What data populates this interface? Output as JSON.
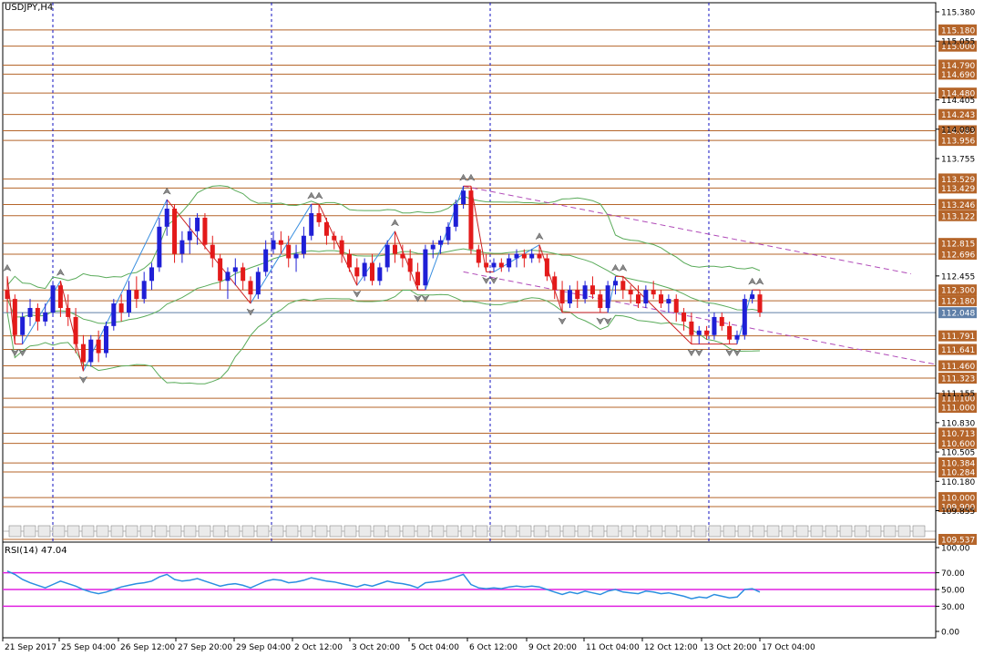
{
  "symbol_title": "USDJPY,H4",
  "rsi_title": "RSI(14) 47.04",
  "colors": {
    "bull": "#1f1fd6",
    "bear": "#e31a1a",
    "level_line": "#b5652a",
    "bollinger": "#5aab5a",
    "zigzag_up": "#3a8fe0",
    "zigzag_down": "#cc2222",
    "channel": "#b04ab8",
    "rsi_line": "#2b8fe0",
    "rsi_level": "#e020e0",
    "current_price": "#5f7fa8",
    "period_sep": "#1010c0"
  },
  "chart_data": {
    "type": "candlestick",
    "timeframe": "H4",
    "y_range": [
      109.537,
      115.38
    ],
    "price_axis_ticks": [
      "115.380",
      "115.055",
      "114.405",
      "114.080",
      "113.755",
      "112.455",
      "111.155",
      "110.830",
      "110.505",
      "110.180",
      "109.855"
    ],
    "time_axis_labels": [
      "21 Sep 2017",
      "25 Sep 04:00",
      "26 Sep 12:00",
      "27 Sep 20:00",
      "29 Sep 04:00",
      "2 Oct 12:00",
      "3 Oct 20:00",
      "5 Oct 04:00",
      "6 Oct 12:00",
      "9 Oct 20:00",
      "11 Oct 04:00",
      "12 Oct 12:00",
      "13 Oct 20:00",
      "17 Oct 04:00"
    ],
    "levels": [
      "115.180",
      "115.000",
      "114.790",
      "114.690",
      "114.480",
      "114.243",
      "114.063",
      "113.956",
      "113.529",
      "113.429",
      "113.246",
      "113.122",
      "112.815",
      "112.696",
      "112.300",
      "112.180",
      "111.791",
      "111.641",
      "111.460",
      "111.323",
      "111.100",
      "111.000",
      "110.713",
      "110.600",
      "110.384",
      "110.284",
      "110.000",
      "109.900",
      "109.537"
    ],
    "current_price": "112.048",
    "candles": [
      [
        112.3,
        112.45,
        112.05,
        112.2
      ],
      [
        112.2,
        112.25,
        111.7,
        111.8
      ],
      [
        111.8,
        112.05,
        111.7,
        112.0
      ],
      [
        112.0,
        112.2,
        111.9,
        112.1
      ],
      [
        112.1,
        112.15,
        111.85,
        111.95
      ],
      [
        111.95,
        112.15,
        111.9,
        112.05
      ],
      [
        112.05,
        112.4,
        112.0,
        112.35
      ],
      [
        112.35,
        112.4,
        112.0,
        112.1
      ],
      [
        112.1,
        112.25,
        111.9,
        112.0
      ],
      [
        112.0,
        112.1,
        111.6,
        111.7
      ],
      [
        111.7,
        111.8,
        111.4,
        111.5
      ],
      [
        111.5,
        111.8,
        111.45,
        111.75
      ],
      [
        111.75,
        111.85,
        111.5,
        111.6
      ],
      [
        111.6,
        111.95,
        111.55,
        111.9
      ],
      [
        111.9,
        112.2,
        111.85,
        112.15
      ],
      [
        112.15,
        112.25,
        111.95,
        112.05
      ],
      [
        112.05,
        112.4,
        112.0,
        112.3
      ],
      [
        112.3,
        112.45,
        112.1,
        112.2
      ],
      [
        112.2,
        112.5,
        112.15,
        112.4
      ],
      [
        112.4,
        112.6,
        112.3,
        112.55
      ],
      [
        112.55,
        113.1,
        112.5,
        113.0
      ],
      [
        113.0,
        113.3,
        112.9,
        113.2
      ],
      [
        113.2,
        113.25,
        112.6,
        112.7
      ],
      [
        112.7,
        112.95,
        112.6,
        112.85
      ],
      [
        112.85,
        113.1,
        112.7,
        112.95
      ],
      [
        112.95,
        113.15,
        112.8,
        113.1
      ],
      [
        113.1,
        113.15,
        112.75,
        112.8
      ],
      [
        112.8,
        112.9,
        112.55,
        112.65
      ],
      [
        112.65,
        112.7,
        112.3,
        112.4
      ],
      [
        112.4,
        112.55,
        112.2,
        112.5
      ],
      [
        112.5,
        112.65,
        112.35,
        112.55
      ],
      [
        112.55,
        112.6,
        112.3,
        112.4
      ],
      [
        112.4,
        112.45,
        112.15,
        112.25
      ],
      [
        112.25,
        112.55,
        112.2,
        112.5
      ],
      [
        112.5,
        112.85,
        112.45,
        112.75
      ],
      [
        112.75,
        112.95,
        112.7,
        112.85
      ],
      [
        112.85,
        112.95,
        112.7,
        112.8
      ],
      [
        112.8,
        112.9,
        112.55,
        112.65
      ],
      [
        112.65,
        112.8,
        112.5,
        112.7
      ],
      [
        112.7,
        113.0,
        112.65,
        112.9
      ],
      [
        112.9,
        113.25,
        112.85,
        113.15
      ],
      [
        113.15,
        113.25,
        113.0,
        113.05
      ],
      [
        113.05,
        113.1,
        112.8,
        112.9
      ],
      [
        112.9,
        112.95,
        112.75,
        112.85
      ],
      [
        112.85,
        112.9,
        112.6,
        112.7
      ],
      [
        112.7,
        112.75,
        112.5,
        112.55
      ],
      [
        112.55,
        112.65,
        112.35,
        112.45
      ],
      [
        112.45,
        112.65,
        112.4,
        112.6
      ],
      [
        112.6,
        112.7,
        112.35,
        112.4
      ],
      [
        112.4,
        112.6,
        112.35,
        112.55
      ],
      [
        112.55,
        112.85,
        112.5,
        112.8
      ],
      [
        112.8,
        112.95,
        112.6,
        112.7
      ],
      [
        112.7,
        112.8,
        112.55,
        112.65
      ],
      [
        112.65,
        112.75,
        112.4,
        112.5
      ],
      [
        112.5,
        112.6,
        112.3,
        112.35
      ],
      [
        112.35,
        112.8,
        112.3,
        112.75
      ],
      [
        112.75,
        112.85,
        112.65,
        112.8
      ],
      [
        112.8,
        112.9,
        112.7,
        112.85
      ],
      [
        112.85,
        113.05,
        112.8,
        113.0
      ],
      [
        113.0,
        113.3,
        112.95,
        113.25
      ],
      [
        113.25,
        113.45,
        113.2,
        113.4
      ],
      [
        113.4,
        113.45,
        112.7,
        112.75
      ],
      [
        112.75,
        112.8,
        112.55,
        112.6
      ],
      [
        112.6,
        112.7,
        112.5,
        112.55
      ],
      [
        112.55,
        112.65,
        112.5,
        112.6
      ],
      [
        112.6,
        112.65,
        112.5,
        112.55
      ],
      [
        112.55,
        112.7,
        112.5,
        112.65
      ],
      [
        112.65,
        112.75,
        112.55,
        112.7
      ],
      [
        112.7,
        112.75,
        112.55,
        112.65
      ],
      [
        112.65,
        112.75,
        112.6,
        112.7
      ],
      [
        112.7,
        112.8,
        112.6,
        112.65
      ],
      [
        112.65,
        112.7,
        112.4,
        112.45
      ],
      [
        112.45,
        112.5,
        112.2,
        112.3
      ],
      [
        112.3,
        112.4,
        112.05,
        112.15
      ],
      [
        112.15,
        112.35,
        112.1,
        112.3
      ],
      [
        112.3,
        112.4,
        112.1,
        112.2
      ],
      [
        112.2,
        112.4,
        112.15,
        112.35
      ],
      [
        112.35,
        112.45,
        112.2,
        112.25
      ],
      [
        112.25,
        112.3,
        112.05,
        112.1
      ],
      [
        112.1,
        112.4,
        112.05,
        112.35
      ],
      [
        112.35,
        112.45,
        112.25,
        112.4
      ],
      [
        112.4,
        112.45,
        112.2,
        112.3
      ],
      [
        112.3,
        112.35,
        112.15,
        112.25
      ],
      [
        112.25,
        112.35,
        112.1,
        112.15
      ],
      [
        112.15,
        112.35,
        112.1,
        112.3
      ],
      [
        112.3,
        112.4,
        112.2,
        112.25
      ],
      [
        112.25,
        112.3,
        112.1,
        112.15
      ],
      [
        112.15,
        112.25,
        112.05,
        112.2
      ],
      [
        112.2,
        112.25,
        111.95,
        112.05
      ],
      [
        112.05,
        112.1,
        111.85,
        111.95
      ],
      [
        111.95,
        112.05,
        111.7,
        111.8
      ],
      [
        111.8,
        111.9,
        111.7,
        111.85
      ],
      [
        111.85,
        111.9,
        111.75,
        111.8
      ],
      [
        111.8,
        112.05,
        111.75,
        112.0
      ],
      [
        112.0,
        112.05,
        111.85,
        111.9
      ],
      [
        111.9,
        111.95,
        111.7,
        111.75
      ],
      [
        111.75,
        111.85,
        111.7,
        111.8
      ],
      [
        111.8,
        112.25,
        111.75,
        112.2
      ],
      [
        112.2,
        112.3,
        112.15,
        112.25
      ],
      [
        112.25,
        112.3,
        112.0,
        112.05
      ]
    ],
    "rsi": {
      "levels": [
        70,
        50,
        30
      ],
      "axis_ticks": [
        "100.00",
        "70.00",
        "50.00",
        "30.00",
        "0.00"
      ],
      "values": [
        72,
        68,
        62,
        58,
        55,
        52,
        56,
        60,
        57,
        54,
        50,
        47,
        45,
        47,
        50,
        53,
        55,
        57,
        58,
        60,
        65,
        68,
        62,
        60,
        61,
        63,
        60,
        57,
        54,
        56,
        57,
        55,
        52,
        56,
        60,
        62,
        61,
        58,
        59,
        61,
        64,
        62,
        60,
        59,
        57,
        55,
        53,
        56,
        54,
        57,
        60,
        58,
        57,
        55,
        52,
        58,
        59,
        60,
        62,
        65,
        68,
        56,
        52,
        51,
        52,
        51,
        53,
        54,
        53,
        54,
        53,
        50,
        47,
        44,
        47,
        45,
        48,
        46,
        44,
        48,
        50,
        47,
        46,
        45,
        48,
        47,
        45,
        46,
        44,
        42,
        39,
        41,
        40,
        44,
        42,
        40,
        41,
        50,
        51,
        47
      ]
    }
  }
}
